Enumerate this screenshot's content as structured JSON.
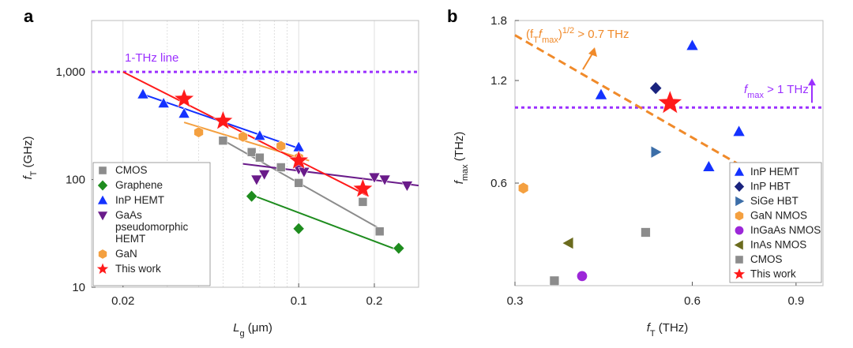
{
  "chart_data": [
    {
      "panel": "a",
      "type": "scatter",
      "xscale": "log",
      "yscale": "log",
      "xlim": [
        0.015,
        0.3
      ],
      "ylim": [
        10,
        3000
      ],
      "ylabel_main": "f",
      "ylabel_sub": "T",
      "ylabel_unit": " (GHz)",
      "xlabel_main": "L",
      "xlabel_sub": "g",
      "xlabel_unit": " (μm)",
      "xticks": [
        {
          "v": 0.02,
          "label": "0.02"
        },
        {
          "v": 0.1,
          "label": "0.1"
        },
        {
          "v": 0.2,
          "label": "0.2"
        }
      ],
      "yticks": [
        {
          "v": 10,
          "label": "10"
        },
        {
          "v": 100,
          "label": "100"
        },
        {
          "v": 1000,
          "label": "1,000"
        }
      ],
      "reference_line": {
        "y": 1000,
        "label": "1-THz line",
        "color": "#9b30ff"
      },
      "series": [
        {
          "name": "CMOS",
          "marker": "square",
          "color": "#8c8c8c",
          "points": [
            [
              0.05,
              230
            ],
            [
              0.065,
              180
            ],
            [
              0.07,
              160
            ],
            [
              0.085,
              130
            ],
            [
              0.1,
              93
            ],
            [
              0.18,
              62
            ],
            [
              0.21,
              33
            ]
          ],
          "fit": [
            [
              0.05,
              232
            ],
            [
              0.21,
              35
            ]
          ]
        },
        {
          "name": "Graphene",
          "marker": "diamond",
          "color": "#1e8c1e",
          "points": [
            [
              0.065,
              70
            ],
            [
              0.1,
              35
            ],
            [
              0.25,
              23
            ]
          ],
          "fit": [
            [
              0.065,
              72
            ],
            [
              0.25,
              22
            ]
          ]
        },
        {
          "name": "InP HEMT",
          "marker": "triangle-up",
          "color": "#1432ff",
          "points": [
            [
              0.024,
              620
            ],
            [
              0.029,
              510
            ],
            [
              0.035,
              410
            ],
            [
              0.07,
              255
            ],
            [
              0.1,
              200
            ]
          ],
          "fit": [
            [
              0.024,
              620
            ],
            [
              0.1,
              195
            ]
          ]
        },
        {
          "name": "GaAs\npseudomorphic\nHEMT",
          "marker": "triangle-down",
          "color": "#6a1b8a",
          "points": [
            [
              0.068,
              100
            ],
            [
              0.073,
              112
            ],
            [
              0.1,
              125
            ],
            [
              0.105,
              118
            ],
            [
              0.2,
              105
            ],
            [
              0.22,
              100
            ],
            [
              0.27,
              88
            ]
          ],
          "fit": [
            [
              0.06,
              140
            ],
            [
              0.3,
              88
            ]
          ]
        },
        {
          "name": "GaN",
          "marker": "hexagon",
          "color": "#f4a040",
          "points": [
            [
              0.04,
              275
            ],
            [
              0.06,
              250
            ],
            [
              0.085,
              205
            ],
            [
              0.1,
              160
            ]
          ],
          "fit": [
            [
              0.035,
              340
            ],
            [
              0.11,
              150
            ]
          ]
        },
        {
          "name": "This work",
          "marker": "star",
          "color": "#ff1a1a",
          "points": [
            [
              0.035,
              560
            ],
            [
              0.05,
              350
            ],
            [
              0.1,
              150
            ],
            [
              0.18,
              82
            ]
          ],
          "fit": [
            [
              0.02,
              1000
            ],
            [
              0.19,
              70
            ]
          ]
        }
      ]
    },
    {
      "panel": "b",
      "type": "scatter",
      "xscale": "log",
      "yscale": "log",
      "xlim": [
        0.3,
        1.0
      ],
      "ylim": [
        0.3,
        1.8
      ],
      "ylabel_main": "f",
      "ylabel_sub": "max",
      "ylabel_unit": " (THz)",
      "xlabel_main": "f",
      "xlabel_sub": "T",
      "xlabel_unit": " (THz)",
      "xticks": [
        {
          "v": 0.3,
          "label": "0.3"
        },
        {
          "v": 0.6,
          "label": "0.6"
        },
        {
          "v": 0.9,
          "label": "0.9"
        }
      ],
      "yticks": [
        {
          "v": 0.6,
          "label": "0.6"
        },
        {
          "v": 1.2,
          "label": "1.2"
        },
        {
          "v": 1.8,
          "label": "1.8"
        }
      ],
      "reference_line": {
        "y": 1.0,
        "color": "#9b30ff"
      },
      "threshold_line": {
        "points": [
          [
            0.3,
            1.63
          ],
          [
            0.75,
            0.653
          ]
        ],
        "color": "#f08a2a"
      },
      "annotations": {
        "fmax_main": "f",
        "fmax_sub": "max",
        "fmax_text": " > 1 THz",
        "ft_main": "(f",
        "ft_sub1": "T",
        "ft_mid": "f",
        "ft_sub2": "max",
        "ft_close": ")",
        "ft_sup": "1/2",
        "ft_text": " > 0.7 THz"
      },
      "series": [
        {
          "name": "InP HEMT",
          "marker": "triangle-up",
          "color": "#1432ff",
          "points": [
            [
              0.42,
              1.09
            ],
            [
              0.6,
              1.52
            ],
            [
              0.64,
              0.67
            ],
            [
              0.72,
              0.85
            ]
          ]
        },
        {
          "name": "InP HBT",
          "marker": "diamond",
          "color": "#1a237e",
          "points": [
            [
              0.52,
              1.14
            ]
          ]
        },
        {
          "name": "SiGe HBT",
          "marker": "triangle-right",
          "color": "#3c6ea8",
          "points": [
            [
              0.52,
              0.74
            ]
          ]
        },
        {
          "name": "GaN NMOS",
          "marker": "hexagon",
          "color": "#f4a040",
          "points": [
            [
              0.31,
              0.58
            ]
          ]
        },
        {
          "name": "InGaAs NMOS",
          "marker": "circle",
          "color": "#9c27d8",
          "points": [
            [
              0.39,
              0.32
            ]
          ]
        },
        {
          "name": "InAs NMOS",
          "marker": "triangle-left",
          "color": "#6b6b1e",
          "points": [
            [
              0.37,
              0.4
            ]
          ]
        },
        {
          "name": "CMOS",
          "marker": "square",
          "color": "#8c8c8c",
          "points": [
            [
              0.35,
              0.31
            ],
            [
              0.5,
              0.43
            ]
          ]
        },
        {
          "name": "This work",
          "marker": "star",
          "color": "#ff1a1a",
          "points": [
            [
              0.55,
              1.03
            ]
          ]
        }
      ]
    }
  ]
}
